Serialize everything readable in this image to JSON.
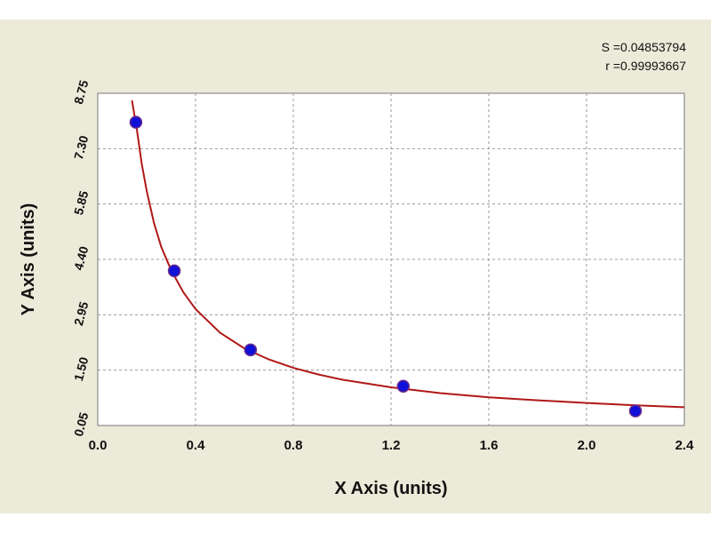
{
  "chart_data": {
    "type": "scatter",
    "xlabel": "X Axis (units)",
    "ylabel": "Y Axis (units)",
    "xlim": [
      0.0,
      2.4
    ],
    "ylim": [
      0.05,
      8.75
    ],
    "x_ticks": [
      "0.0",
      "0.4",
      "0.8",
      "1.2",
      "1.6",
      "2.0",
      "2.4"
    ],
    "y_ticks": [
      "0.05",
      "1.50",
      "2.95",
      "4.40",
      "5.85",
      "7.30",
      "8.75"
    ],
    "grid": true,
    "series": [
      {
        "kind": "points",
        "color": "#1010d8",
        "x": [
          0.156,
          0.313,
          0.625,
          1.25,
          2.2
        ],
        "y": [
          7.99,
          4.1,
          2.03,
          1.08,
          0.43
        ]
      },
      {
        "kind": "fit-curve",
        "color": "#b01818",
        "x": [
          0.14,
          0.16,
          0.18,
          0.2,
          0.23,
          0.26,
          0.3,
          0.35,
          0.4,
          0.5,
          0.6,
          0.7,
          0.8,
          0.9,
          1.0,
          1.2,
          1.4,
          1.6,
          1.8,
          2.0,
          2.2,
          2.4
        ],
        "y": [
          9.0,
          7.8,
          6.9,
          6.2,
          5.35,
          4.72,
          4.12,
          3.54,
          3.1,
          2.48,
          2.07,
          1.78,
          1.56,
          1.39,
          1.25,
          1.05,
          0.9,
          0.79,
          0.71,
          0.64,
          0.58,
          0.53
        ]
      }
    ],
    "annotations": {
      "s_value": "S =0.04853794",
      "r_value": "r =0.99993667"
    }
  }
}
